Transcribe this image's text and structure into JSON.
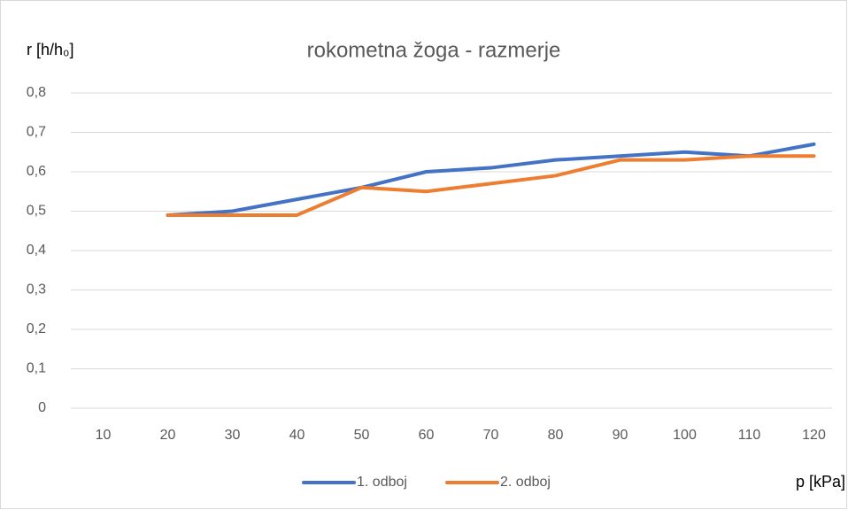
{
  "chart_data": {
    "type": "line",
    "title": "rokometna žoga - razmerje",
    "y_label": "r [h/h₀]",
    "x_label": "p [kPa]",
    "categories": [
      "10",
      "20",
      "30",
      "40",
      "50",
      "60",
      "70",
      "80",
      "90",
      "100",
      "110",
      "120"
    ],
    "series": [
      {
        "name": "1. odboj",
        "color": "#4472c4",
        "values": [
          null,
          0.49,
          0.5,
          0.53,
          0.56,
          0.6,
          0.61,
          0.63,
          0.64,
          0.65,
          0.64,
          0.67
        ]
      },
      {
        "name": "2. odboj",
        "color": "#ed7d31",
        "values": [
          null,
          0.49,
          0.49,
          0.49,
          0.56,
          0.55,
          0.57,
          0.59,
          0.63,
          0.63,
          0.64,
          0.64
        ]
      }
    ],
    "ylim": [
      0,
      0.8
    ],
    "yticks": [
      0,
      {
        "value": 0.1,
        "label": "0,1"
      },
      {
        "value": 0.2,
        "label": "0,2"
      },
      {
        "value": 0.3,
        "label": "0,3"
      },
      {
        "value": 0.4,
        "label": "0,4"
      },
      {
        "value": 0.5,
        "label": "0,5"
      },
      {
        "value": 0.6,
        "label": "0,6"
      },
      {
        "value": 0.7,
        "label": "0,7"
      },
      {
        "value": 0.8,
        "label": "0,8"
      }
    ],
    "grid": true,
    "legend": "bottom"
  }
}
